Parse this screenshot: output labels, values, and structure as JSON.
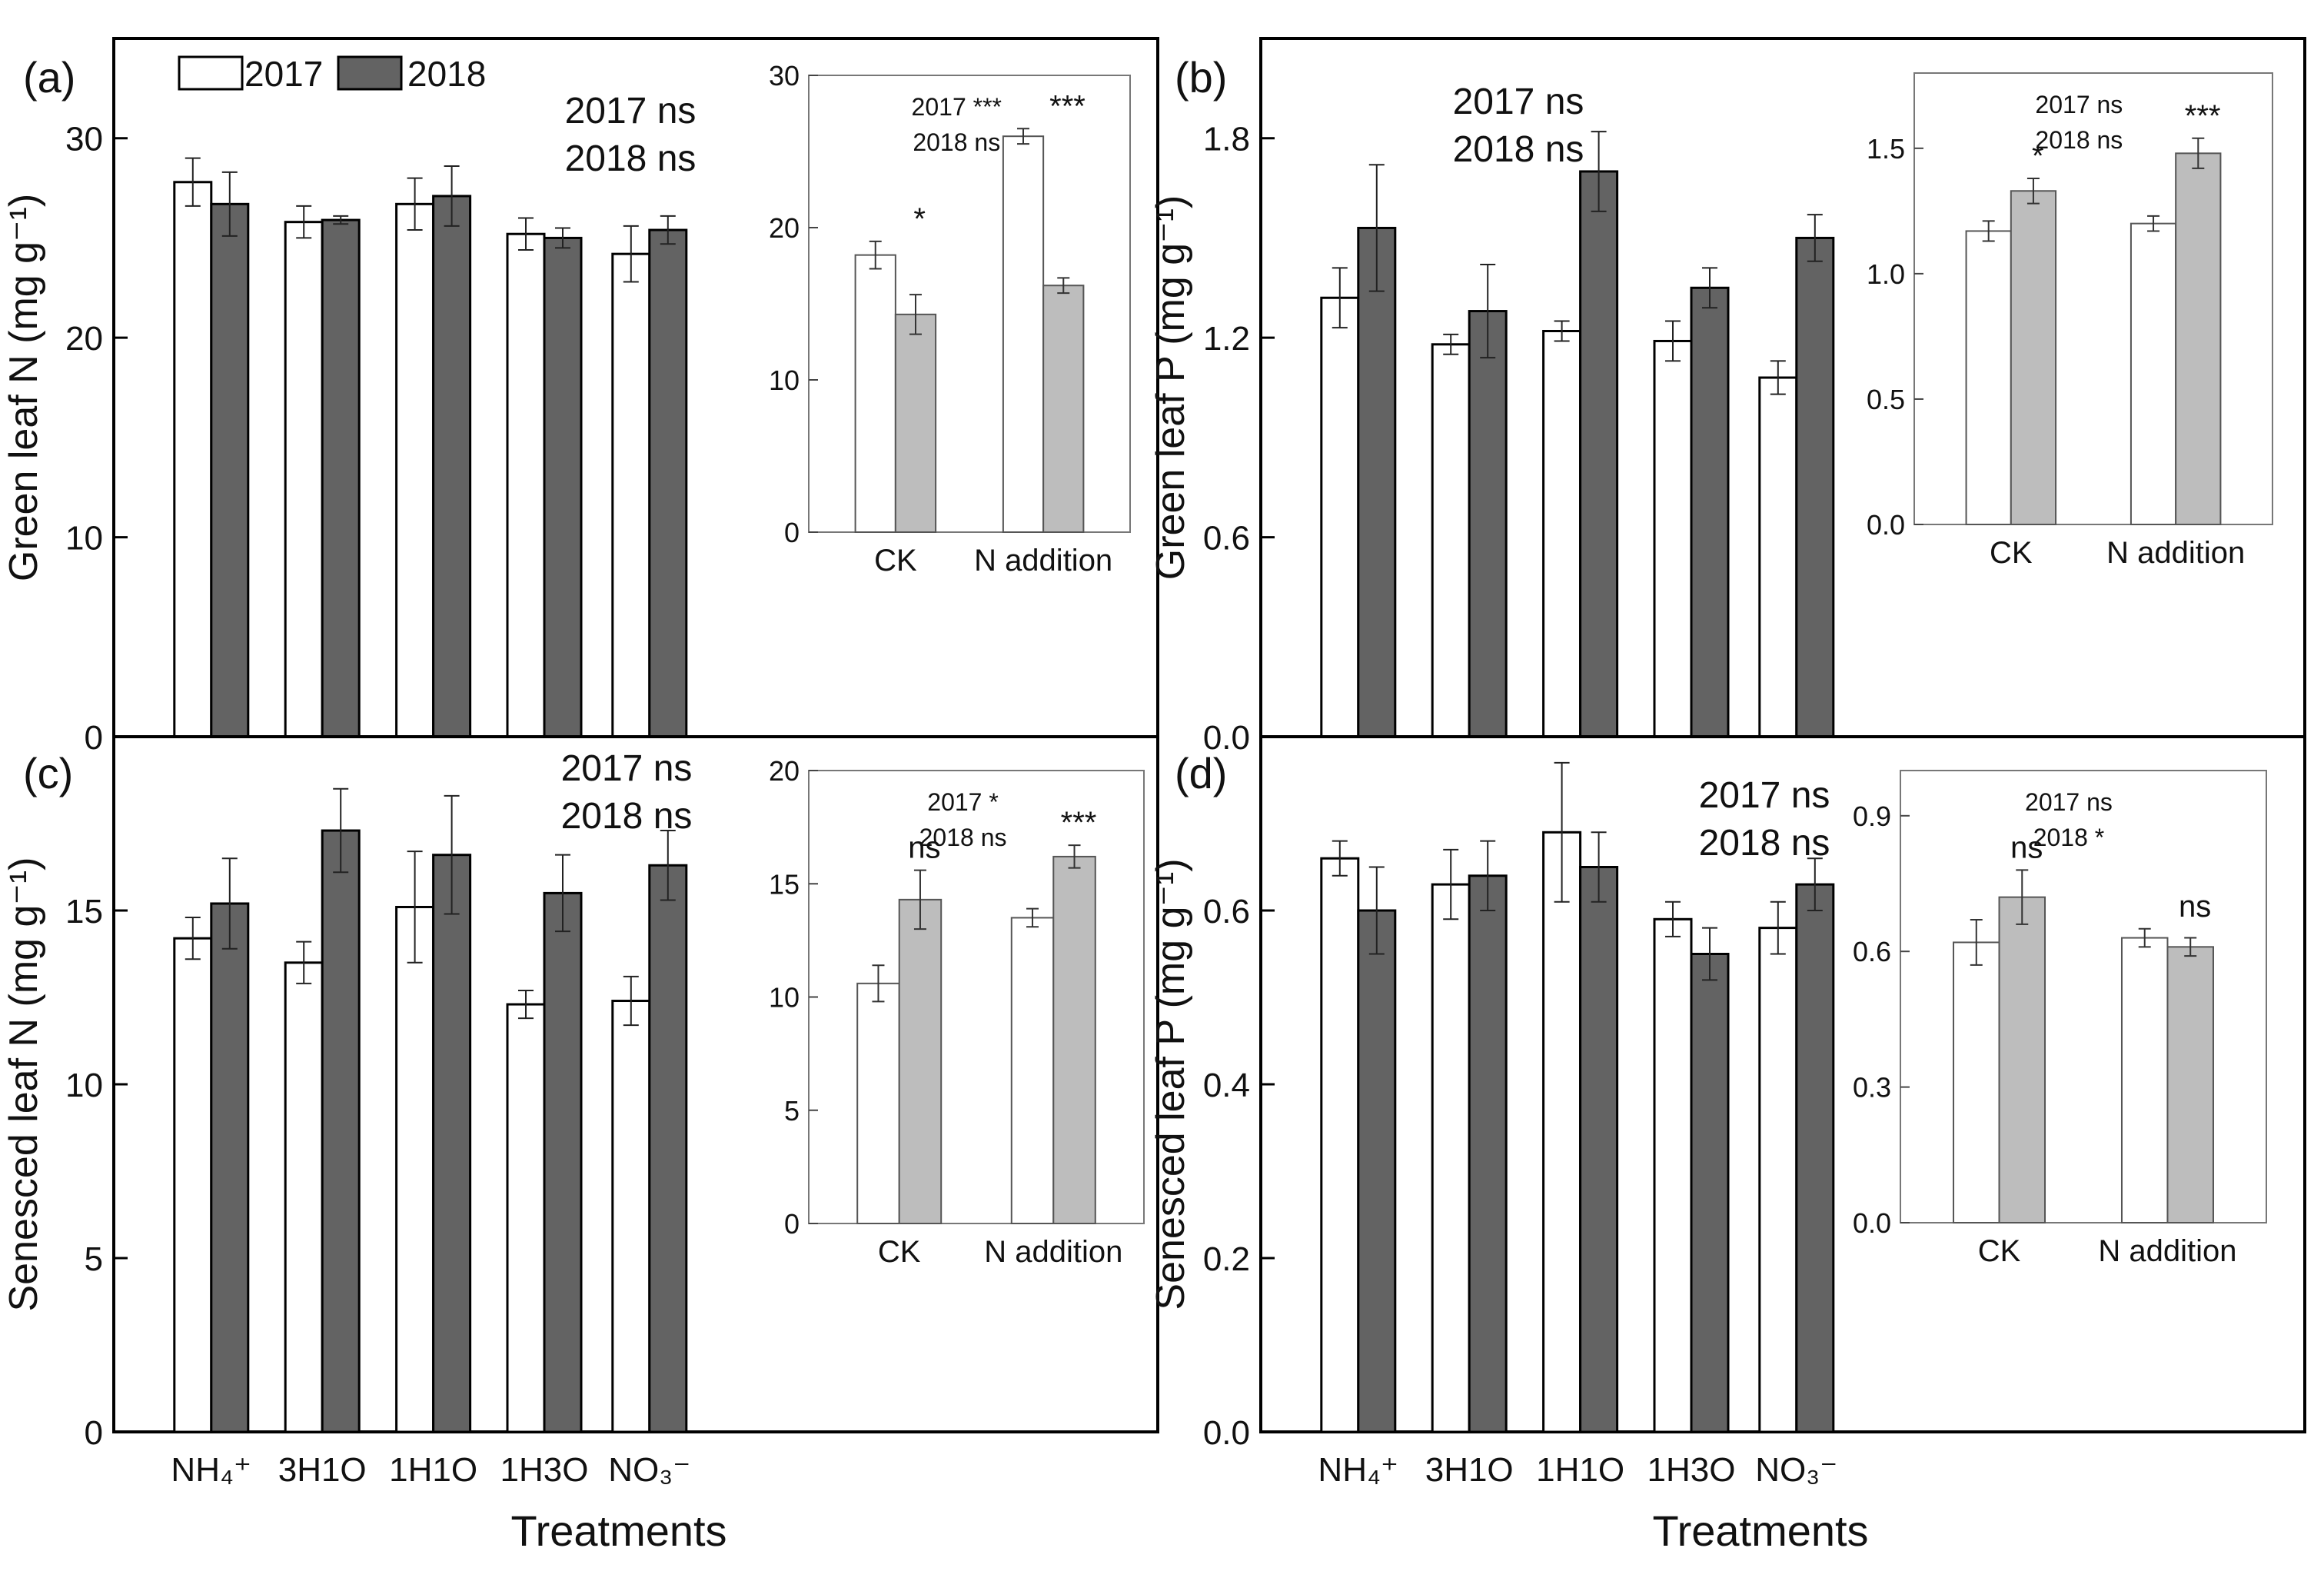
{
  "colors": {
    "y2017": "#ffffff",
    "y2018_main": "#636363",
    "y2018_inset": "#bdbdbd",
    "axis": "#000000"
  },
  "legend": {
    "entry_2017": "2017",
    "entry_2018": "2018"
  },
  "shared": {
    "xlabel": "Treatments"
  },
  "chart_data": [
    {
      "type": "bar",
      "panel_label": "(a)",
      "ylabel": "Green leaf N (mg g⁻¹)",
      "ylim": [
        0,
        35
      ],
      "yticks": [
        "0",
        "10",
        "20",
        "30"
      ],
      "categories": [
        "NH₄⁺",
        "3H1O",
        "1H1O",
        "1H3O",
        "NO₃⁻"
      ],
      "show_xticks": false,
      "series": [
        {
          "name": "2017",
          "values": [
            27.8,
            25.8,
            26.7,
            25.2,
            24.2
          ],
          "errors": [
            1.2,
            0.8,
            1.3,
            0.8,
            1.4
          ]
        },
        {
          "name": "2018",
          "values": [
            26.7,
            25.9,
            27.1,
            25.0,
            25.4
          ],
          "errors": [
            1.6,
            0.2,
            1.5,
            0.5,
            0.7
          ]
        }
      ],
      "annotations": [
        "2017 ns",
        "2018 ns"
      ],
      "inset": {
        "type": "bar",
        "ylim": [
          0,
          30
        ],
        "yticks": [
          "0",
          "10",
          "20",
          "30"
        ],
        "categories": [
          "CK",
          "N addition"
        ],
        "series": [
          {
            "name": "2017",
            "values": [
              18.2,
              26.0
            ],
            "errors": [
              0.9,
              0.5
            ]
          },
          {
            "name": "2018",
            "values": [
              14.3,
              16.2
            ],
            "errors": [
              1.3,
              0.5
            ]
          }
        ],
        "stars": [
          "*",
          "***"
        ],
        "annotations": [
          "2017 ***",
          "2018 ns"
        ]
      }
    },
    {
      "type": "bar",
      "panel_label": "(b)",
      "ylabel": "Green leaf P (mg g⁻¹)",
      "ylim": [
        0,
        2.1
      ],
      "yticks": [
        "0.0",
        "0.6",
        "1.2",
        "1.8"
      ],
      "categories": [
        "NH₄⁺",
        "3H1O",
        "1H1O",
        "1H3O",
        "NO₃⁻"
      ],
      "show_xticks": false,
      "series": [
        {
          "name": "2017",
          "values": [
            1.32,
            1.18,
            1.22,
            1.19,
            1.08
          ],
          "errors": [
            0.09,
            0.03,
            0.03,
            0.06,
            0.05
          ]
        },
        {
          "name": "2018",
          "values": [
            1.53,
            1.28,
            1.7,
            1.35,
            1.5
          ],
          "errors": [
            0.19,
            0.14,
            0.12,
            0.06,
            0.07
          ]
        }
      ],
      "annotations": [
        "2017 ns",
        "2018 ns"
      ],
      "inset": {
        "type": "bar",
        "ylim": [
          0,
          1.8
        ],
        "yticks": [
          "0.0",
          "0.5",
          "1.0",
          "1.5"
        ],
        "categories": [
          "CK",
          "N addition"
        ],
        "series": [
          {
            "name": "2017",
            "values": [
              1.17,
              1.2
            ],
            "errors": [
              0.04,
              0.03
            ]
          },
          {
            "name": "2018",
            "values": [
              1.33,
              1.48
            ],
            "errors": [
              0.05,
              0.06
            ]
          }
        ],
        "stars": [
          "*",
          "***"
        ],
        "annotations": [
          "2017 ns",
          "2018 ns"
        ]
      }
    },
    {
      "type": "bar",
      "panel_label": "(c)",
      "ylabel": "Senesced leaf N (mg g⁻¹)",
      "ylim": [
        0,
        20
      ],
      "yticks": [
        "0",
        "5",
        "10",
        "15"
      ],
      "categories": [
        "NH₄⁺",
        "3H1O",
        "1H1O",
        "1H3O",
        "NO₃⁻"
      ],
      "show_xticks": true,
      "series": [
        {
          "name": "2017",
          "values": [
            14.2,
            13.5,
            15.1,
            12.3,
            12.4
          ],
          "errors": [
            0.6,
            0.6,
            1.6,
            0.4,
            0.7
          ]
        },
        {
          "name": "2018",
          "values": [
            15.2,
            17.3,
            16.6,
            15.5,
            16.3
          ],
          "errors": [
            1.3,
            1.2,
            1.7,
            1.1,
            1.0
          ]
        }
      ],
      "annotations": [
        "2017 ns",
        "2018 ns"
      ],
      "inset": {
        "type": "bar",
        "ylim": [
          0,
          20
        ],
        "yticks": [
          "0",
          "5",
          "10",
          "15",
          "20"
        ],
        "categories": [
          "CK",
          "N addition"
        ],
        "series": [
          {
            "name": "2017",
            "values": [
              10.6,
              13.5
            ],
            "errors": [
              0.8,
              0.4
            ]
          },
          {
            "name": "2018",
            "values": [
              14.3,
              16.2
            ],
            "errors": [
              1.3,
              0.5
            ]
          }
        ],
        "stars": [
          "ns",
          "***"
        ],
        "annotations": [
          "2017 *",
          "2018 ns"
        ]
      }
    },
    {
      "type": "bar",
      "panel_label": "(d)",
      "ylabel": "Senesced leaf P (mg g⁻¹)",
      "ylim": [
        0,
        0.8
      ],
      "yticks": [
        "0.0",
        "0.2",
        "0.4",
        "0.6"
      ],
      "categories": [
        "NH₄⁺",
        "3H1O",
        "1H1O",
        "1H3O",
        "NO₃⁻"
      ],
      "show_xticks": true,
      "series": [
        {
          "name": "2017",
          "values": [
            0.66,
            0.63,
            0.69,
            0.59,
            0.58
          ],
          "errors": [
            0.02,
            0.04,
            0.08,
            0.02,
            0.03
          ]
        },
        {
          "name": "2018",
          "values": [
            0.6,
            0.64,
            0.65,
            0.55,
            0.63
          ],
          "errors": [
            0.05,
            0.04,
            0.04,
            0.03,
            0.03
          ]
        }
      ],
      "annotations": [
        "2017 ns",
        "2018 ns"
      ],
      "inset": {
        "type": "bar",
        "ylim": [
          0,
          1.0
        ],
        "yticks": [
          "0.0",
          "0.3",
          "0.6",
          "0.9"
        ],
        "categories": [
          "CK",
          "N addition"
        ],
        "series": [
          {
            "name": "2017",
            "values": [
              0.62,
              0.63
            ],
            "errors": [
              0.05,
              0.02
            ]
          },
          {
            "name": "2018",
            "values": [
              0.72,
              0.61
            ],
            "errors": [
              0.06,
              0.02
            ]
          }
        ],
        "stars": [
          "ns",
          "ns"
        ],
        "annotations": [
          "2017 ns",
          "2018 *"
        ]
      }
    }
  ]
}
